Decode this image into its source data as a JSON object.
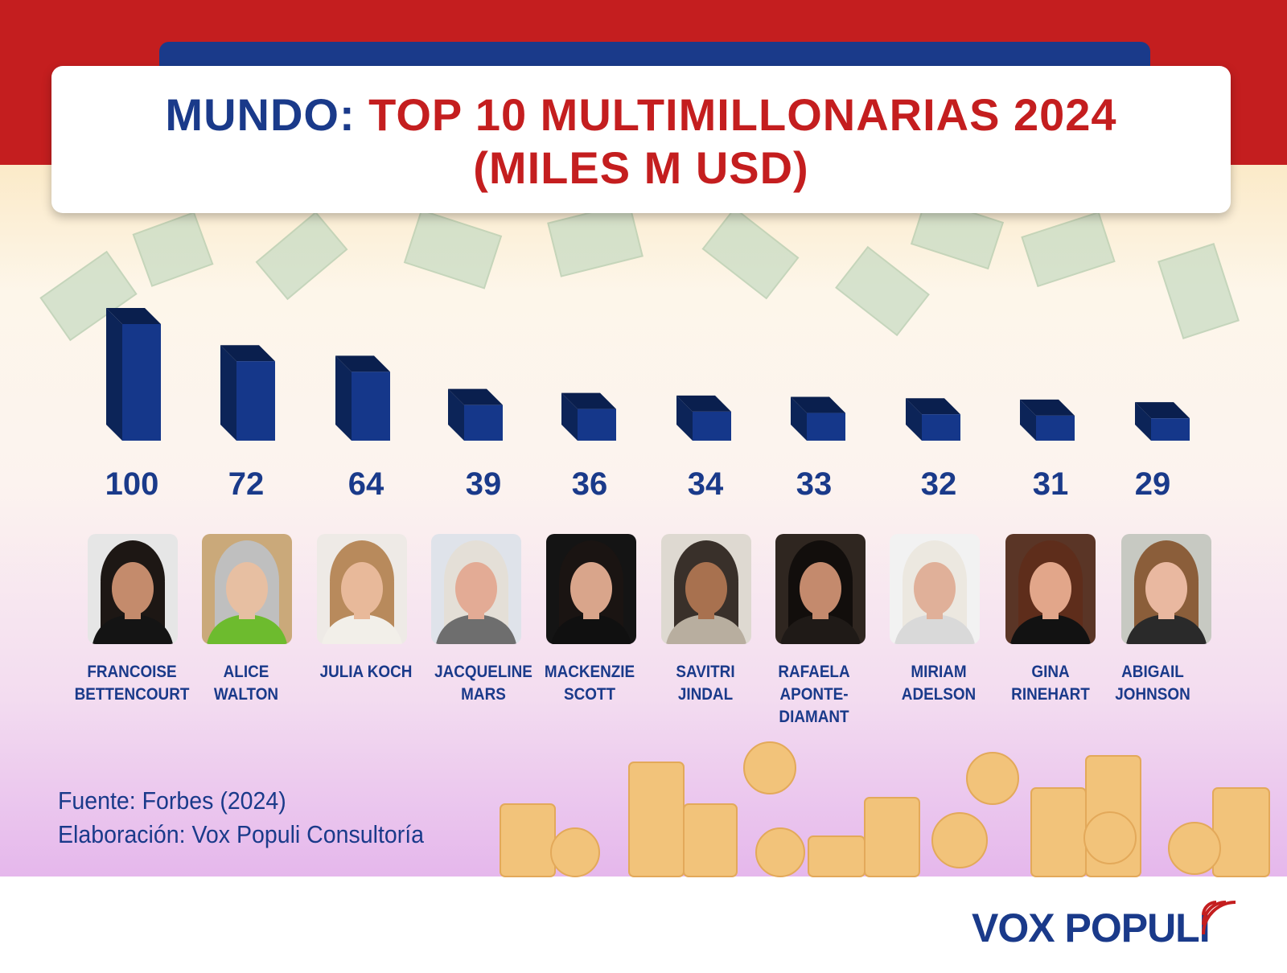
{
  "title": {
    "prefix": "MUNDO:",
    "main": "TOP 10 MULTIMILLONARIAS 2024",
    "line2": "(MILES M USD)"
  },
  "chart_data": {
    "type": "bar",
    "title": "MUNDO: TOP 10 MULTIMILLONARIAS 2024 (MILES M USD)",
    "categories": [
      "FRANCOISE BETTENCOURT",
      "ALICE WALTON",
      "JULIA KOCH",
      "JACQUELINE MARS",
      "MACKENZIE SCOTT",
      "SAVITRI JINDAL",
      "RAFAELA APONTE-DIAMANT",
      "MIRIAM ADELSON",
      "GINA RINEHART",
      "ABIGAIL JOHNSON"
    ],
    "values": [
      100,
      72,
      64,
      39,
      36,
      34,
      33,
      32,
      31,
      29
    ],
    "value_labels": [
      "100",
      "72",
      "64",
      "39",
      "36",
      "34",
      "33",
      "32",
      "31",
      "29"
    ],
    "xlabel": "",
    "ylabel": "",
    "grid": false,
    "bar_color": "#1a3a8a"
  },
  "people": [
    {
      "line1": "FRANCOISE",
      "line2": "BETTENCOURT",
      "line3": ""
    },
    {
      "line1": "ALICE",
      "line2": "WALTON",
      "line3": ""
    },
    {
      "line1": "JULIA KOCH",
      "line2": "",
      "line3": ""
    },
    {
      "line1": "JACQUELINE",
      "line2": "MARS",
      "line3": ""
    },
    {
      "line1": "MACKENZIE",
      "line2": "SCOTT",
      "line3": ""
    },
    {
      "line1": "SAVITRI",
      "line2": "JINDAL",
      "line3": ""
    },
    {
      "line1": "RAFAELA",
      "line2": "APONTE-",
      "line3": "DIAMANT"
    },
    {
      "line1": "MIRIAM",
      "line2": "ADELSON",
      "line3": ""
    },
    {
      "line1": "GINA",
      "line2": "RINEHART",
      "line3": ""
    },
    {
      "line1": "ABIGAIL",
      "line2": "JOHNSON",
      "line3": ""
    }
  ],
  "footer": {
    "source": "Fuente: Forbes (2024)",
    "credit": "Elaboración: Vox Populi Consultoría",
    "logo": "VOX POPULI"
  },
  "colors": {
    "navy": "#1a3a8a",
    "red": "#c41e1f",
    "bar_front": "#15378a",
    "bar_side": "#0c2458",
    "bar_top": "#0a1f4e"
  }
}
